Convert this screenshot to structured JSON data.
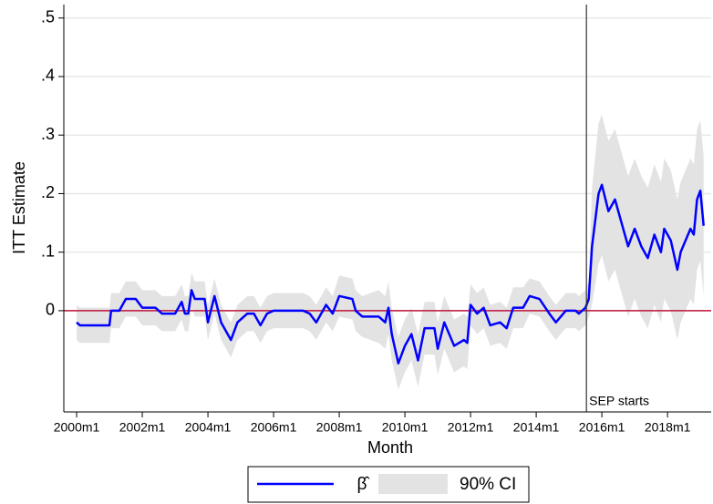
{
  "chart_data": {
    "type": "line",
    "ylabel": "ITT Estimate",
    "xlabel": "Month",
    "x": [
      2000.0,
      2000.1,
      2001.0,
      2001.05,
      2001.3,
      2001.5,
      2001.8,
      2002.0,
      2002.4,
      2002.6,
      2003.0,
      2003.2,
      2003.3,
      2003.4,
      2003.5,
      2003.6,
      2003.9,
      2004.0,
      2004.2,
      2004.4,
      2004.7,
      2004.9,
      2005.2,
      2005.4,
      2005.6,
      2005.8,
      2006.0,
      2006.9,
      2007.1,
      2007.3,
      2007.6,
      2007.8,
      2008.0,
      2008.4,
      2008.5,
      2008.7,
      2009.2,
      2009.4,
      2009.5,
      2009.6,
      2009.8,
      2010.0,
      2010.2,
      2010.4,
      2010.6,
      2010.9,
      2011.0,
      2011.2,
      2011.5,
      2011.8,
      2011.9,
      2012.0,
      2012.2,
      2012.4,
      2012.6,
      2012.9,
      2013.1,
      2013.3,
      2013.6,
      2013.8,
      2014.1,
      2014.4,
      2014.6,
      2014.9,
      2015.2,
      2015.3,
      2015.5,
      2015.6,
      2015.7,
      2015.9,
      2016.0,
      2016.2,
      2016.4,
      2016.6,
      2016.8,
      2017.0,
      2017.2,
      2017.4,
      2017.6,
      2017.8,
      2017.9,
      2018.1,
      2018.3,
      2018.4,
      2018.7,
      2018.8,
      2018.9,
      2019.0,
      2019.1
    ],
    "series": [
      {
        "name": "β̂",
        "color": "#0000ff",
        "values": [
          -0.02,
          -0.025,
          -0.025,
          0,
          0,
          0.02,
          0.02,
          0.005,
          0.005,
          -0.005,
          -0.005,
          0.015,
          -0.005,
          -0.005,
          0.035,
          0.02,
          0.02,
          -0.02,
          0.025,
          -0.02,
          -0.05,
          -0.02,
          -0.005,
          -0.005,
          -0.025,
          -0.005,
          0,
          0,
          -0.005,
          -0.02,
          0.01,
          -0.005,
          0.025,
          0.02,
          0,
          -0.01,
          -0.01,
          -0.02,
          0.005,
          -0.04,
          -0.09,
          -0.06,
          -0.04,
          -0.085,
          -0.03,
          -0.03,
          -0.065,
          -0.02,
          -0.06,
          -0.05,
          -0.055,
          0.01,
          -0.005,
          0.005,
          -0.025,
          -0.02,
          -0.03,
          0.005,
          0.005,
          0.025,
          0.02,
          -0.005,
          -0.02,
          0,
          0,
          -0.005,
          0.005,
          0.02,
          0.11,
          0.2,
          0.215,
          0.17,
          0.19,
          0.15,
          0.11,
          0.14,
          0.11,
          0.09,
          0.13,
          0.1,
          0.14,
          0.12,
          0.07,
          0.1,
          0.14,
          0.13,
          0.19,
          0.205,
          0.145
        ]
      },
      {
        "name": "90% CI",
        "color": "#e3e3e3",
        "lower": [
          -0.05,
          -0.055,
          -0.055,
          -0.03,
          -0.03,
          -0.01,
          -0.01,
          -0.025,
          -0.025,
          -0.035,
          -0.035,
          -0.015,
          -0.035,
          -0.035,
          0.005,
          -0.01,
          -0.01,
          -0.05,
          -0.005,
          -0.05,
          -0.08,
          -0.05,
          -0.035,
          -0.035,
          -0.055,
          -0.035,
          -0.03,
          -0.03,
          -0.035,
          -0.05,
          -0.02,
          -0.035,
          -0.01,
          -0.015,
          -0.035,
          -0.045,
          -0.055,
          -0.065,
          -0.04,
          -0.085,
          -0.135,
          -0.105,
          -0.085,
          -0.13,
          -0.075,
          -0.075,
          -0.11,
          -0.065,
          -0.105,
          -0.095,
          -0.1,
          -0.025,
          -0.04,
          -0.03,
          -0.06,
          -0.055,
          -0.065,
          -0.03,
          -0.03,
          -0.005,
          -0.01,
          -0.035,
          -0.05,
          -0.03,
          -0.03,
          -0.035,
          -0.025,
          -0.01,
          0.01,
          0.08,
          0.095,
          0.05,
          0.07,
          0.03,
          -0.01,
          0.02,
          -0.01,
          -0.03,
          0.01,
          -0.02,
          0.02,
          0,
          -0.05,
          -0.02,
          0.02,
          0.01,
          0.07,
          0.085,
          0.025
        ],
        "upper": [
          0.01,
          0.005,
          0.005,
          0.03,
          0.03,
          0.05,
          0.05,
          0.035,
          0.035,
          0.025,
          0.025,
          0.045,
          0.025,
          0.025,
          0.065,
          0.05,
          0.05,
          0.01,
          0.055,
          0.01,
          -0.02,
          0.01,
          0.025,
          0.025,
          0.005,
          0.025,
          0.03,
          0.03,
          0.025,
          0.01,
          0.04,
          0.025,
          0.06,
          0.055,
          0.035,
          0.025,
          0.035,
          0.025,
          0.05,
          0.005,
          -0.045,
          -0.015,
          0.005,
          -0.04,
          0.015,
          0.015,
          -0.02,
          0.025,
          -0.015,
          -0.005,
          -0.01,
          0.045,
          0.03,
          0.04,
          0.01,
          0.015,
          0.005,
          0.04,
          0.04,
          0.055,
          0.05,
          0.025,
          0.01,
          0.03,
          0.03,
          0.025,
          0.035,
          0.05,
          0.21,
          0.32,
          0.335,
          0.29,
          0.31,
          0.27,
          0.23,
          0.26,
          0.23,
          0.21,
          0.25,
          0.22,
          0.26,
          0.24,
          0.19,
          0.22,
          0.26,
          0.25,
          0.31,
          0.325,
          0.265
        ]
      }
    ],
    "hline": 0,
    "hline_color": "#c0143c",
    "vline": {
      "x": 2015.53,
      "label": "SEP starts"
    },
    "xlim": [
      1999.61,
      2019.33
    ],
    "ylim": [
      -0.173,
      0.523
    ],
    "xticks": [
      {
        "value": 2000,
        "label": "2000m1"
      },
      {
        "value": 2002,
        "label": "2002m1"
      },
      {
        "value": 2004,
        "label": "2004m1"
      },
      {
        "value": 2006,
        "label": "2006m1"
      },
      {
        "value": 2008,
        "label": "2008m1"
      },
      {
        "value": 2010,
        "label": "2010m1"
      },
      {
        "value": 2012,
        "label": "2012m1"
      },
      {
        "value": 2014,
        "label": "2014m1"
      },
      {
        "value": 2016,
        "label": "2016m1"
      },
      {
        "value": 2018,
        "label": "2018m1"
      }
    ],
    "yticks": [
      0,
      {
        "value": 0.1,
        "label": ".1"
      },
      {
        "value": 0.2,
        "label": ".2"
      },
      {
        "value": 0.3,
        "label": ".3"
      },
      {
        "value": 0.4,
        "label": ".4"
      },
      {
        "value": 0.5,
        "label": ".5"
      }
    ],
    "grid": true
  }
}
